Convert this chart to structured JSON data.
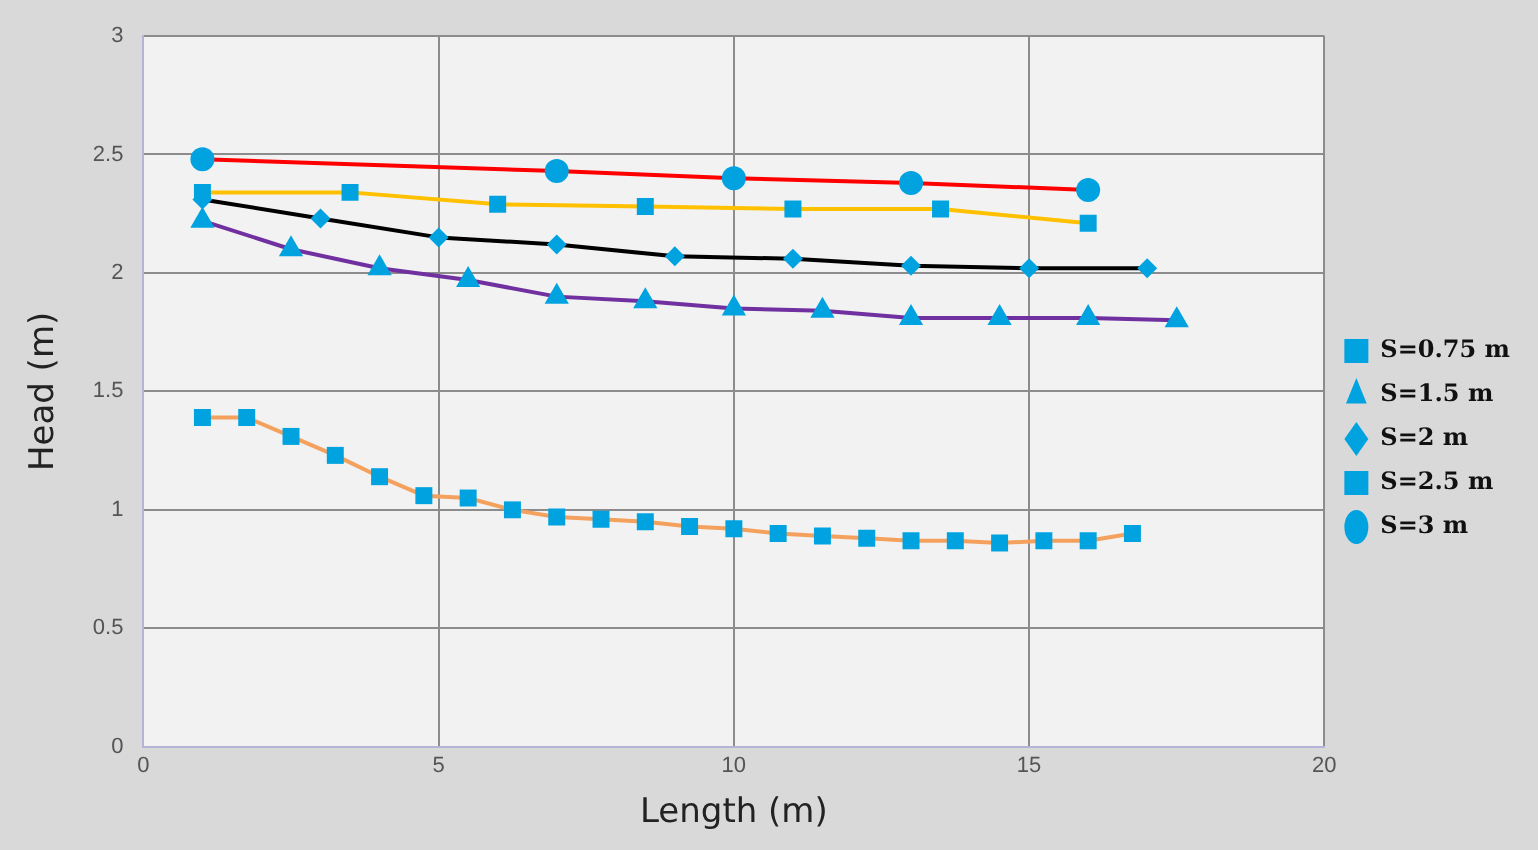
{
  "chart_data": {
    "type": "line",
    "xlabel": "Length (m)",
    "ylabel": "Head (m)",
    "xlim": [
      0,
      20
    ],
    "xticks": [
      0,
      5,
      10,
      15,
      20
    ],
    "ylim": [
      0,
      3
    ],
    "yticks": [
      0,
      0.5,
      1,
      1.5,
      2,
      2.5,
      3
    ],
    "grid": true,
    "legend": "right",
    "line_style": "solid",
    "series": [
      {
        "name": "S=0.75 m",
        "color": "#f4a15d",
        "marker": "square",
        "x": [
          1,
          1.75,
          2.5,
          3.25,
          4,
          4.75,
          5.5,
          6.25,
          7,
          7.75,
          8.5,
          9.25,
          10,
          10.75,
          11.5,
          12.25,
          13,
          13.75,
          14.5,
          15.25,
          16,
          16.75
        ],
        "values": [
          1.39,
          1.39,
          1.31,
          1.23,
          1.14,
          1.06,
          1.05,
          1.0,
          0.97,
          0.96,
          0.95,
          0.93,
          0.92,
          0.9,
          0.89,
          0.88,
          0.87,
          0.87,
          0.86,
          0.87,
          0.87,
          0.9
        ]
      },
      {
        "name": "S=1.5 m",
        "color": "#7030a0",
        "marker": "triangle",
        "x": [
          1,
          2.5,
          4,
          5.5,
          7,
          8.5,
          10,
          11.5,
          13,
          14.5,
          16,
          17.5
        ],
        "values": [
          2.22,
          2.1,
          2.02,
          1.97,
          1.9,
          1.88,
          1.85,
          1.84,
          1.81,
          1.81,
          1.81,
          1.8
        ]
      },
      {
        "name": "S=2 m",
        "color": "#000000",
        "marker": "diamond",
        "x": [
          1,
          3,
          5,
          7,
          9,
          11,
          13,
          15,
          17
        ],
        "values": [
          2.31,
          2.23,
          2.15,
          2.12,
          2.07,
          2.06,
          2.03,
          2.02,
          2.02
        ]
      },
      {
        "name": "S=2.5 m",
        "color": "#ffc000",
        "marker": "square",
        "x": [
          1,
          3.5,
          6,
          8.5,
          11,
          13.5,
          16
        ],
        "values": [
          2.34,
          2.34,
          2.29,
          2.28,
          2.27,
          2.27,
          2.21
        ]
      },
      {
        "name": "S=3 m",
        "color": "#ff0000",
        "marker": "circle",
        "x": [
          1,
          7,
          10,
          13,
          16
        ],
        "values": [
          2.48,
          2.43,
          2.4,
          2.38,
          2.35
        ]
      }
    ]
  }
}
